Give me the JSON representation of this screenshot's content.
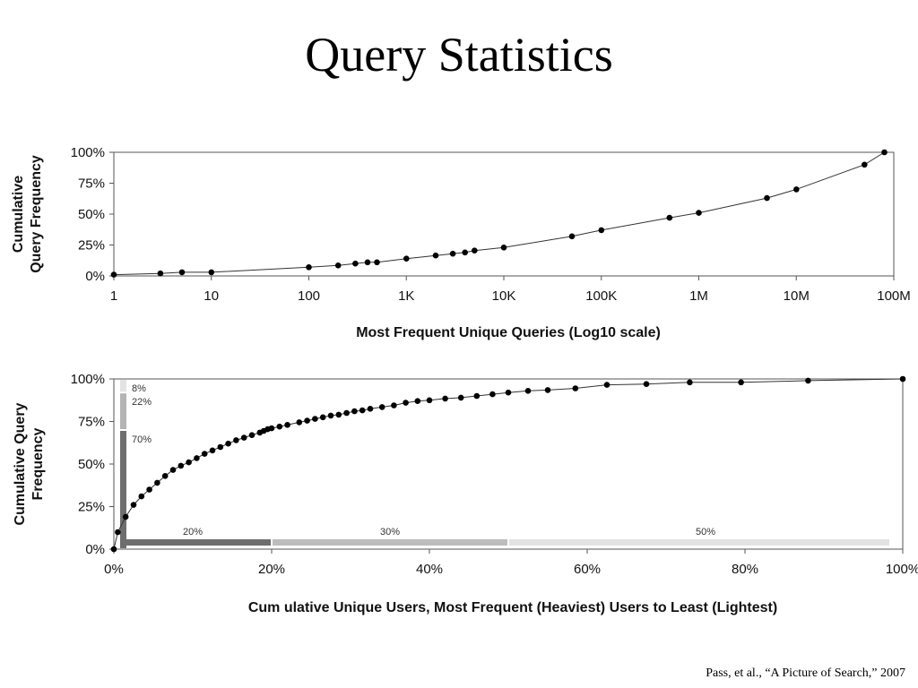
{
  "slide": {
    "title": "Query Statistics",
    "citation": "Pass, et al., “A Picture of Search,” 2007"
  },
  "chart_data": [
    {
      "type": "line",
      "xlabel": "Most Frequent Unique Queries (Log10 scale)",
      "ylabel_lines": [
        "Cumulative",
        "Query Frequency"
      ],
      "x_scale": "log10",
      "xlim": [
        1,
        100000000
      ],
      "ylim": [
        0,
        100
      ],
      "x_tick_values": [
        1,
        10,
        100,
        1000,
        10000,
        100000,
        1000000,
        10000000,
        100000000
      ],
      "x_tick_labels": [
        "1",
        "10",
        "100",
        "1K",
        "10K",
        "100K",
        "1M",
        "10M",
        "100M"
      ],
      "y_tick_values": [
        0,
        25,
        50,
        75,
        100
      ],
      "y_tick_labels": [
        "0%",
        "25%",
        "50%",
        "75%",
        "100%"
      ],
      "grid": false,
      "series": [
        {
          "x": [
            1,
            3,
            5,
            10,
            100,
            200,
            300,
            400,
            500,
            1000,
            2000,
            3000,
            4000,
            5000,
            10000,
            50000,
            100000,
            500000,
            1000000,
            5000000,
            10000000,
            50000000,
            80000000
          ],
          "y": [
            1,
            2,
            3,
            3,
            7,
            8.5,
            10,
            11,
            11,
            14,
            16.5,
            18,
            19,
            20.5,
            23,
            32,
            37,
            47,
            51,
            63,
            70,
            90,
            100
          ]
        }
      ]
    },
    {
      "type": "line",
      "xlabel": "Cum ulative Unique Users, Most Frequent (Heaviest) Users to Least (Lightest)",
      "ylabel_lines": [
        "Cumulative Query",
        "Frequency"
      ],
      "xlim": [
        0,
        100
      ],
      "ylim": [
        0,
        100
      ],
      "x_tick_values": [
        0,
        20,
        40,
        60,
        80,
        100
      ],
      "x_tick_labels": [
        "0%",
        "20%",
        "40%",
        "60%",
        "80%",
        "100%"
      ],
      "y_tick_values": [
        0,
        25,
        50,
        75,
        100
      ],
      "y_tick_labels": [
        "0%",
        "25%",
        "50%",
        "75%",
        "100%"
      ],
      "grid": false,
      "series": [
        {
          "x": [
            0,
            0.5,
            1.5,
            2.5,
            3.5,
            4.5,
            5.5,
            6.5,
            7.5,
            8.5,
            9.5,
            10.5,
            11.5,
            12.5,
            13.5,
            14.5,
            15.5,
            16.5,
            17.5,
            18.5,
            19,
            19.5,
            20,
            21,
            22,
            23.5,
            24.5,
            25.5,
            26.5,
            27.5,
            28.5,
            29.5,
            30.5,
            31.5,
            32.5,
            34,
            35.5,
            37,
            38.5,
            40,
            42,
            44,
            46,
            48,
            50,
            52.5,
            55,
            58.5,
            62.5,
            67.5,
            73,
            79.5,
            88,
            100
          ],
          "y": [
            0,
            10,
            19,
            26,
            31,
            35,
            39,
            43,
            46.5,
            49,
            51,
            53.5,
            56,
            58,
            60,
            62,
            64,
            65.5,
            67,
            68.5,
            69.5,
            70.5,
            71,
            72,
            73,
            74.5,
            75.5,
            76.5,
            77.5,
            78.5,
            79,
            80,
            81,
            81.5,
            82.5,
            83.5,
            84.5,
            86,
            87,
            87.5,
            88.5,
            89,
            90,
            91,
            92,
            93,
            93.5,
            94.5,
            96.5,
            97,
            98,
            98,
            99,
            100
          ]
        }
      ],
      "y_segments": [
        {
          "label": "70%",
          "from": 0,
          "to": 70,
          "color": "#6e6e6e"
        },
        {
          "label": "22%",
          "from": 70,
          "to": 92,
          "color": "#b4b4b4"
        },
        {
          "label": "8%",
          "from": 92,
          "to": 100,
          "color": "#e3e3e3"
        }
      ],
      "x_segments": [
        {
          "label": "20%",
          "from": 0,
          "to": 20,
          "color": "#6e6e6e"
        },
        {
          "label": "30%",
          "from": 20,
          "to": 50,
          "color": "#bdbdbd"
        },
        {
          "label": "50%",
          "from": 50,
          "to": 100,
          "color": "#e3e3e3"
        }
      ]
    }
  ]
}
